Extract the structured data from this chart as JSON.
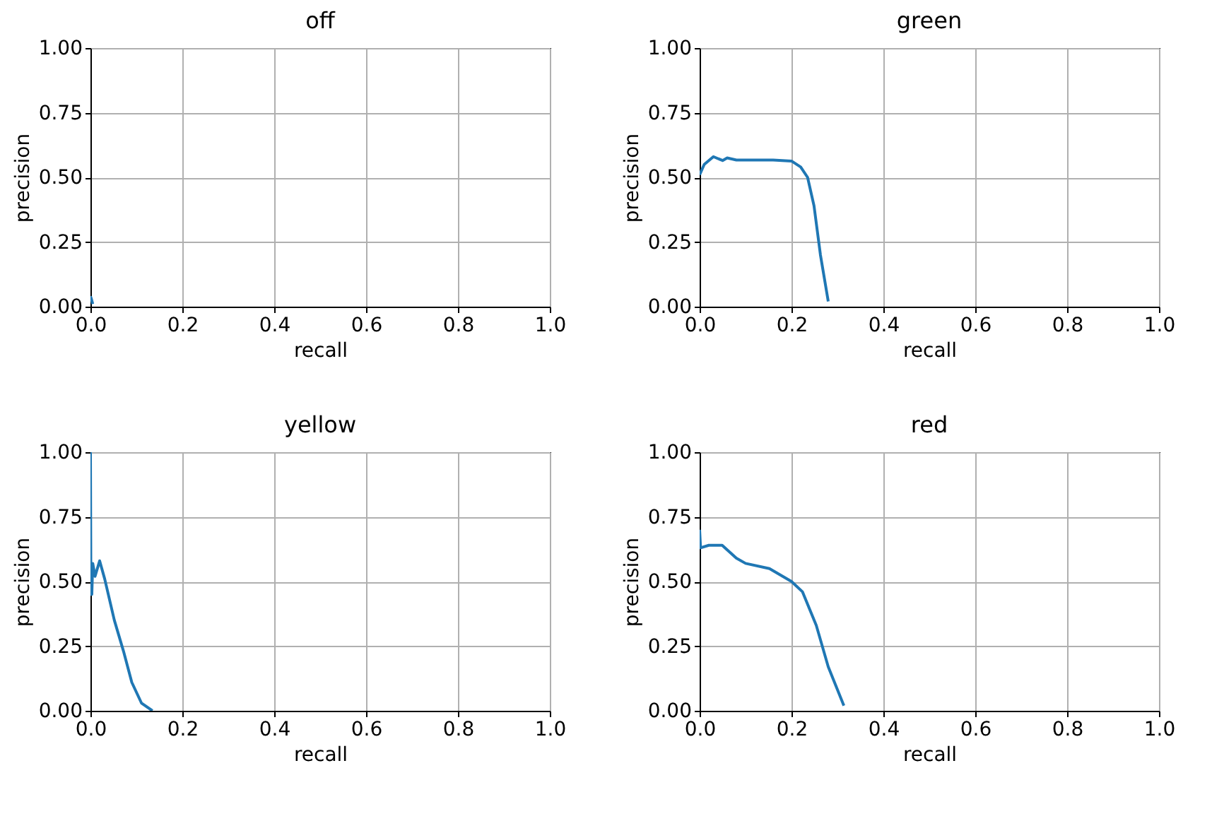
{
  "chart_data": [
    {
      "type": "line",
      "title": "off",
      "xlabel": "recall",
      "ylabel": "precision",
      "xlim": [
        0,
        1
      ],
      "ylim": [
        0,
        1
      ],
      "grid": true,
      "xticks": [
        {
          "value": 0,
          "label": "0.0"
        },
        {
          "value": 0.2,
          "label": "0.2"
        },
        {
          "value": 0.4,
          "label": "0.4"
        },
        {
          "value": 0.6,
          "label": "0.6"
        },
        {
          "value": 0.8,
          "label": "0.8"
        },
        {
          "value": 1,
          "label": "1.0"
        }
      ],
      "yticks": [
        {
          "value": 0,
          "label": "0.00"
        },
        {
          "value": 0.25,
          "label": "0.25"
        },
        {
          "value": 0.5,
          "label": "0.50"
        },
        {
          "value": 0.75,
          "label": "0.75"
        },
        {
          "value": 1,
          "label": "1.00"
        }
      ],
      "series": [
        {
          "color": "#1f77b4",
          "x": [
            0,
            0.002,
            0.005
          ],
          "values": [
            0.04,
            0.03,
            0.01
          ]
        }
      ]
    },
    {
      "type": "line",
      "title": "green",
      "xlabel": "recall",
      "ylabel": "precision",
      "xlim": [
        0,
        1
      ],
      "ylim": [
        0,
        1
      ],
      "grid": true,
      "xticks": [
        {
          "value": 0,
          "label": "0.0"
        },
        {
          "value": 0.2,
          "label": "0.2"
        },
        {
          "value": 0.4,
          "label": "0.4"
        },
        {
          "value": 0.6,
          "label": "0.6"
        },
        {
          "value": 0.8,
          "label": "0.8"
        },
        {
          "value": 1,
          "label": "1.0"
        }
      ],
      "yticks": [
        {
          "value": 0,
          "label": "0.00"
        },
        {
          "value": 0.25,
          "label": "0.25"
        },
        {
          "value": 0.5,
          "label": "0.50"
        },
        {
          "value": 0.75,
          "label": "0.75"
        },
        {
          "value": 1,
          "label": "1.00"
        }
      ],
      "series": [
        {
          "color": "#1f77b4",
          "x": [
            0,
            0.01,
            0.03,
            0.05,
            0.06,
            0.08,
            0.12,
            0.16,
            0.2,
            0.22,
            0.235,
            0.249,
            0.263,
            0.28
          ],
          "values": [
            0.51,
            0.55,
            0.58,
            0.565,
            0.575,
            0.567,
            0.567,
            0.567,
            0.563,
            0.54,
            0.5,
            0.39,
            0.2,
            0.02
          ]
        }
      ]
    },
    {
      "type": "line",
      "title": "yellow",
      "xlabel": "recall",
      "ylabel": "precision",
      "xlim": [
        0,
        1
      ],
      "ylim": [
        0,
        1
      ],
      "grid": true,
      "xticks": [
        {
          "value": 0,
          "label": "0.0"
        },
        {
          "value": 0.2,
          "label": "0.2"
        },
        {
          "value": 0.4,
          "label": "0.4"
        },
        {
          "value": 0.6,
          "label": "0.6"
        },
        {
          "value": 0.8,
          "label": "0.8"
        },
        {
          "value": 1,
          "label": "1.0"
        }
      ],
      "yticks": [
        {
          "value": 0,
          "label": "0.00"
        },
        {
          "value": 0.25,
          "label": "0.25"
        },
        {
          "value": 0.5,
          "label": "0.50"
        },
        {
          "value": 0.75,
          "label": "0.75"
        },
        {
          "value": 1,
          "label": "1.00"
        }
      ],
      "series": [
        {
          "color": "#1f77b4",
          "x": [
            0,
            0.001,
            0.003,
            0.005,
            0.01,
            0.02,
            0.031,
            0.052,
            0.072,
            0.09,
            0.111,
            0.135
          ],
          "values": [
            1.0,
            0.45,
            0.45,
            0.57,
            0.52,
            0.58,
            0.51,
            0.35,
            0.23,
            0.11,
            0.03,
            0.0
          ]
        }
      ]
    },
    {
      "type": "line",
      "title": "red",
      "xlabel": "recall",
      "ylabel": "precision",
      "xlim": [
        0,
        1
      ],
      "ylim": [
        0,
        1
      ],
      "grid": true,
      "xticks": [
        {
          "value": 0,
          "label": "0.0"
        },
        {
          "value": 0.2,
          "label": "0.2"
        },
        {
          "value": 0.4,
          "label": "0.4"
        },
        {
          "value": 0.6,
          "label": "0.6"
        },
        {
          "value": 0.8,
          "label": "0.8"
        },
        {
          "value": 1,
          "label": "1.0"
        }
      ],
      "yticks": [
        {
          "value": 0,
          "label": "0.00"
        },
        {
          "value": 0.25,
          "label": "0.25"
        },
        {
          "value": 0.5,
          "label": "0.50"
        },
        {
          "value": 0.75,
          "label": "0.75"
        },
        {
          "value": 1,
          "label": "1.00"
        }
      ],
      "series": [
        {
          "color": "#1f77b4",
          "x": [
            0,
            0.002,
            0.02,
            0.049,
            0.08,
            0.1,
            0.152,
            0.2,
            0.224,
            0.254,
            0.28,
            0.314
          ],
          "values": [
            0.7,
            0.63,
            0.64,
            0.64,
            0.59,
            0.57,
            0.55,
            0.5,
            0.46,
            0.33,
            0.17,
            0.02
          ]
        }
      ]
    }
  ]
}
